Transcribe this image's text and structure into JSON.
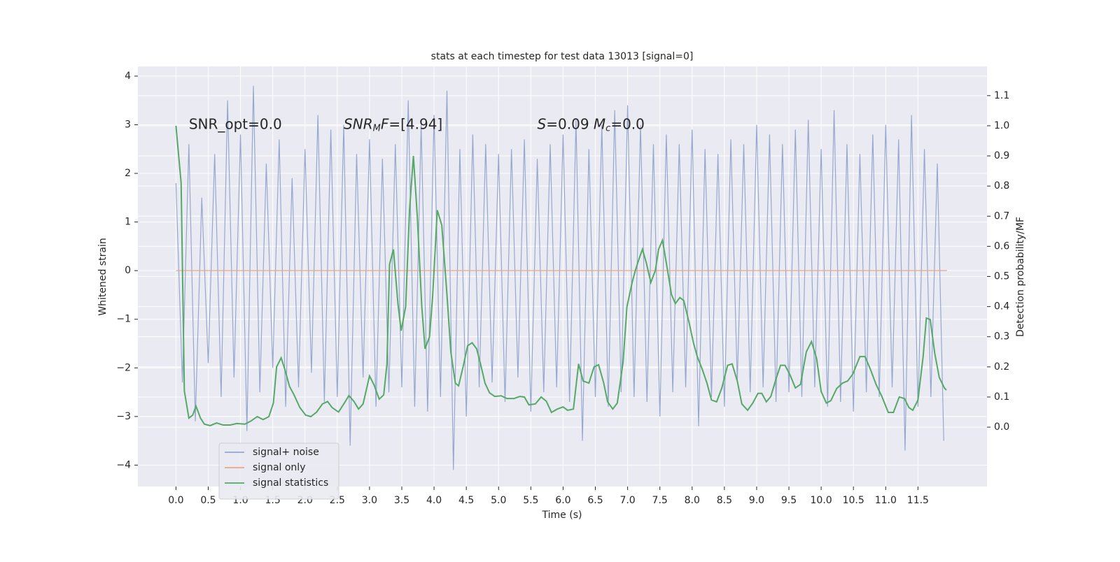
{
  "chart_data": {
    "type": "line",
    "title": "stats at each timestep for test data 13013 [signal=0]",
    "xlabel": "Time (s)",
    "ylabel": "Whitened strain",
    "y2label": "Detection probability/MF",
    "annotations": [
      [
        "SNR_opt=0.0"
      ],
      [
        "SNR",
        "M",
        "F=[4.94]"
      ],
      [
        "S",
        "=0.09   ",
        "M",
        "c",
        "=0.0"
      ]
    ],
    "xlim": [
      -0.59,
      12.57
    ],
    "ylim": [
      -4.44,
      4.2
    ],
    "y2lim": [
      -0.197,
      1.197
    ],
    "xticks": [
      {
        "value": 0,
        "label": "0.0"
      },
      0.5,
      {
        "value": 1,
        "label": "1.0"
      },
      1.5,
      {
        "value": 2,
        "label": "2.0"
      },
      2.5,
      {
        "value": 3,
        "label": "3.0"
      },
      3.5,
      {
        "value": 4,
        "label": "4.0"
      },
      4.5,
      {
        "value": 5,
        "label": "5.0"
      },
      5.5,
      {
        "value": 6,
        "label": "6.0"
      },
      6.5,
      {
        "value": 7,
        "label": "7.0"
      },
      7.5,
      {
        "value": 8,
        "label": "8.0"
      },
      8.5,
      {
        "value": 9,
        "label": "9.0"
      },
      9.5,
      {
        "value": 10,
        "label": "10.0"
      },
      10.5,
      {
        "value": 11,
        "label": "11.0"
      },
      11.5
    ],
    "yticks": [
      {
        "value": -4,
        "label": "−4"
      },
      {
        "value": -3,
        "label": "−3"
      },
      {
        "value": -2,
        "label": "−2"
      },
      {
        "value": -1,
        "label": "−1"
      },
      0,
      1,
      2,
      3,
      4
    ],
    "y2ticks": [
      {
        "value": 0,
        "label": "0.0"
      },
      0.1,
      0.2,
      0.3,
      0.4,
      0.5,
      0.6,
      0.7,
      0.8,
      0.9,
      {
        "value": 1,
        "label": "1.0"
      },
      1.1
    ],
    "grid": true,
    "legend": "lower left",
    "series": [
      {
        "name": "signal+ noise",
        "color": "#96a8cf",
        "x": [
          0,
          0.1,
          0.2,
          0.3,
          0.4,
          0.5,
          0.6,
          0.7,
          0.8,
          0.9,
          1,
          1.1,
          1.2,
          1.3,
          1.4,
          1.5,
          1.6,
          1.7,
          1.8,
          1.9,
          2,
          2.1,
          2.2,
          2.3,
          2.4,
          2.5,
          2.6,
          2.7,
          2.8,
          2.9,
          3,
          3.1,
          3.2,
          3.3,
          3.4,
          3.5,
          3.6,
          3.7,
          3.8,
          3.9,
          4,
          4.1,
          4.2,
          4.3,
          4.4,
          4.5,
          4.6,
          4.7,
          4.8,
          4.9,
          5,
          5.1,
          5.2,
          5.3,
          5.4,
          5.5,
          5.6,
          5.7,
          5.8,
          5.9,
          6,
          6.1,
          6.2,
          6.3,
          6.4,
          6.5,
          6.6,
          6.7,
          6.8,
          6.9,
          7,
          7.1,
          7.2,
          7.3,
          7.4,
          7.5,
          7.6,
          7.7,
          7.8,
          7.9,
          8,
          8.1,
          8.2,
          8.3,
          8.4,
          8.5,
          8.6,
          8.7,
          8.8,
          8.9,
          9,
          9.1,
          9.2,
          9.3,
          9.4,
          9.5,
          9.6,
          9.7,
          9.8,
          9.9,
          10,
          10.1,
          10.2,
          10.3,
          10.4,
          10.5,
          10.6,
          10.7,
          10.8,
          10.9,
          11,
          11.1,
          11.2,
          11.3,
          11.4,
          11.5,
          11.6,
          11.7,
          11.8,
          11.9
        ],
        "values": [
          1.8,
          -2.3,
          2.6,
          -3.1,
          1.5,
          -1.9,
          2.4,
          -2.6,
          3.5,
          -2.2,
          2.8,
          -3.3,
          3.8,
          -2.5,
          2.2,
          -2.0,
          2.7,
          -2.8,
          1.9,
          -2.4,
          2.5,
          -2.1,
          3.2,
          -2.7,
          2.9,
          -2.6,
          3.0,
          -3.6,
          2.4,
          -2.2,
          2.7,
          -2.8,
          2.3,
          -2.5,
          2.6,
          -2.4,
          3.5,
          -2.8,
          3.0,
          -2.9,
          3.2,
          -2.6,
          3.7,
          -4.1,
          2.5,
          -3.0,
          2.8,
          -2.4,
          2.6,
          -2.3,
          2.4,
          -2.7,
          2.5,
          -2.2,
          2.7,
          -2.9,
          2.3,
          -2.5,
          2.6,
          -2.4,
          2.8,
          -2.7,
          3.1,
          -3.5,
          2.5,
          -2.6,
          3.0,
          -2.8,
          3.3,
          -2.5,
          3.4,
          -2.6,
          3.0,
          -2.7,
          2.6,
          -3.0,
          2.8,
          -2.5,
          2.6,
          -2.4,
          2.9,
          -3.2,
          2.5,
          -2.6,
          2.4,
          -2.8,
          2.7,
          -2.3,
          2.6,
          -2.5,
          3.0,
          -2.4,
          2.8,
          -2.7,
          2.6,
          -2.5,
          2.9,
          -2.6,
          3.1,
          -2.4,
          2.5,
          -2.8,
          3.3,
          -2.7,
          2.6,
          -2.9,
          2.4,
          -2.5,
          2.8,
          -2.6,
          3.0,
          -2.4,
          2.7,
          -3.7,
          3.2,
          -2.8,
          2.5,
          -2.6,
          2.2,
          -3.5
        ]
      },
      {
        "name": "signal only",
        "color": "#e8a88a",
        "x": [
          0,
          11.95
        ],
        "values": [
          0,
          0
        ]
      },
      {
        "name": "signal statistics",
        "color": "#55a868",
        "axis": "y2",
        "x": [
          0,
          0.08,
          0.13,
          0.2,
          0.26,
          0.31,
          0.38,
          0.44,
          0.53,
          0.63,
          0.73,
          0.84,
          0.94,
          1.07,
          1.16,
          1.26,
          1.35,
          1.44,
          1.51,
          1.56,
          1.63,
          1.69,
          1.76,
          1.83,
          1.92,
          2.01,
          2.09,
          2.18,
          2.27,
          2.35,
          2.42,
          2.52,
          2.61,
          2.68,
          2.76,
          2.83,
          2.9,
          3.0,
          3.07,
          3.15,
          3.22,
          3.27,
          3.31,
          3.37,
          3.44,
          3.49,
          3.56,
          3.62,
          3.68,
          3.74,
          3.81,
          3.86,
          3.93,
          3.98,
          4.05,
          4.12,
          4.2,
          4.26,
          4.33,
          4.38,
          4.45,
          4.52,
          4.59,
          4.66,
          4.72,
          4.79,
          4.86,
          4.94,
          5.04,
          5.13,
          5.24,
          5.33,
          5.4,
          5.47,
          5.57,
          5.66,
          5.74,
          5.82,
          5.91,
          6.0,
          6.07,
          6.16,
          6.24,
          6.31,
          6.4,
          6.48,
          6.55,
          6.63,
          6.69,
          6.77,
          6.84,
          6.93,
          6.99,
          7.07,
          7.12,
          7.18,
          7.23,
          7.29,
          7.36,
          7.43,
          7.48,
          7.54,
          7.6,
          7.68,
          7.74,
          7.81,
          7.87,
          7.95,
          8.02,
          8.08,
          8.16,
          8.23,
          8.3,
          8.38,
          8.46,
          8.55,
          8.62,
          8.7,
          8.77,
          8.86,
          8.94,
          9.02,
          9.08,
          9.15,
          9.22,
          9.3,
          9.37,
          9.44,
          9.52,
          9.6,
          9.68,
          9.77,
          9.85,
          9.93,
          10.0,
          10.08,
          10.15,
          10.24,
          10.33,
          10.41,
          10.49,
          10.6,
          10.68,
          10.77,
          10.85,
          10.94,
          11.04,
          11.12,
          11.21,
          11.29,
          11.36,
          11.42,
          11.5,
          11.58,
          11.63,
          11.69,
          11.76,
          11.83,
          11.91,
          11.94
        ],
        "values": [
          1.0,
          0.81,
          0.12,
          0.03,
          0.04,
          0.07,
          0.03,
          0.01,
          0.005,
          0.014,
          0.007,
          0.007,
          0.012,
          0.01,
          0.02,
          0.035,
          0.025,
          0.035,
          0.08,
          0.2,
          0.23,
          0.19,
          0.135,
          0.107,
          0.065,
          0.04,
          0.035,
          0.05,
          0.077,
          0.085,
          0.065,
          0.05,
          0.08,
          0.105,
          0.085,
          0.06,
          0.077,
          0.17,
          0.14,
          0.093,
          0.107,
          0.21,
          0.54,
          0.59,
          0.41,
          0.32,
          0.4,
          0.72,
          0.9,
          0.7,
          0.4,
          0.26,
          0.3,
          0.44,
          0.72,
          0.67,
          0.44,
          0.25,
          0.146,
          0.137,
          0.2,
          0.27,
          0.28,
          0.26,
          0.21,
          0.146,
          0.114,
          0.102,
          0.104,
          0.095,
          0.095,
          0.102,
          0.1,
          0.074,
          0.077,
          0.1,
          0.086,
          0.049,
          0.06,
          0.067,
          0.056,
          0.06,
          0.21,
          0.153,
          0.146,
          0.2,
          0.207,
          0.146,
          0.084,
          0.06,
          0.08,
          0.216,
          0.4,
          0.48,
          0.52,
          0.56,
          0.59,
          0.545,
          0.48,
          0.52,
          0.59,
          0.62,
          0.545,
          0.44,
          0.41,
          0.43,
          0.42,
          0.35,
          0.28,
          0.234,
          0.19,
          0.146,
          0.09,
          0.084,
          0.13,
          0.205,
          0.21,
          0.153,
          0.077,
          0.056,
          0.08,
          0.112,
          0.112,
          0.084,
          0.102,
          0.16,
          0.205,
          0.205,
          0.172,
          0.13,
          0.142,
          0.25,
          0.284,
          0.227,
          0.118,
          0.08,
          0.088,
          0.128,
          0.146,
          0.153,
          0.176,
          0.234,
          0.234,
          0.188,
          0.142,
          0.102,
          0.049,
          0.049,
          0.1,
          0.095,
          0.065,
          0.056,
          0.09,
          0.234,
          0.362,
          0.357,
          0.245,
          0.165,
          0.13,
          0.123
        ]
      }
    ]
  }
}
